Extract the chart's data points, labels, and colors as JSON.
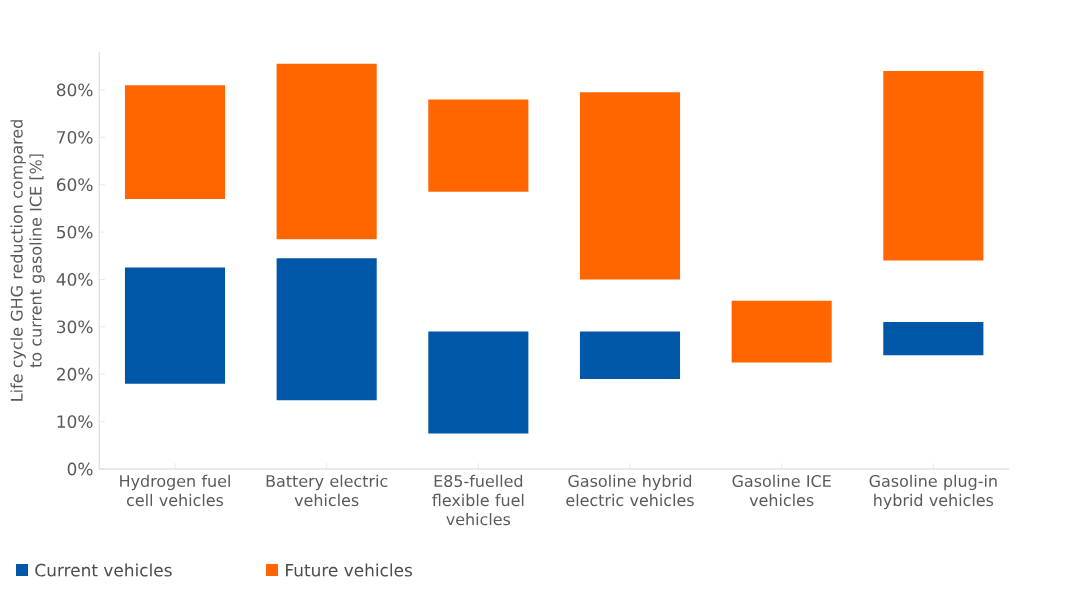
{
  "chart_data": {
    "type": "bar",
    "ylabel": "Life cycle GHG reduction compared to current gasoline ICE [%]",
    "categories": [
      "Hydrogen fuel cell vehicles",
      "Battery electric vehicles",
      "E85-fuelled flexible fuel vehicles",
      "Gasoline hybrid electric vehicles",
      "Gasoline ICE vehicles",
      "Gasoline plug-in hybrid vehicles"
    ],
    "series": [
      {
        "name": "Current vehicles",
        "color": "#0057a8",
        "base": [
          18,
          14.5,
          7.5,
          19,
          null,
          24
        ],
        "values": [
          24.5,
          30,
          21.5,
          10,
          null,
          7
        ]
      },
      {
        "name": "Future vehicles",
        "color": "#ff6600",
        "base": [
          57,
          48.5,
          58.5,
          40,
          22.5,
          44
        ],
        "values": [
          24,
          37,
          19.5,
          39.5,
          13,
          40
        ]
      }
    ],
    "ylim": [
      0,
      88
    ],
    "yticks": [
      {
        "value": 0,
        "label": "0%"
      },
      {
        "value": 10,
        "label": "10%"
      },
      {
        "value": 20,
        "label": "20%"
      },
      {
        "value": 30,
        "label": "30%"
      },
      {
        "value": 40,
        "label": "40%"
      },
      {
        "value": 50,
        "label": "50%"
      },
      {
        "value": 60,
        "label": "60%"
      },
      {
        "value": 70,
        "label": "70%"
      },
      {
        "value": 80,
        "label": "80%"
      }
    ],
    "legend": "bottom left"
  }
}
